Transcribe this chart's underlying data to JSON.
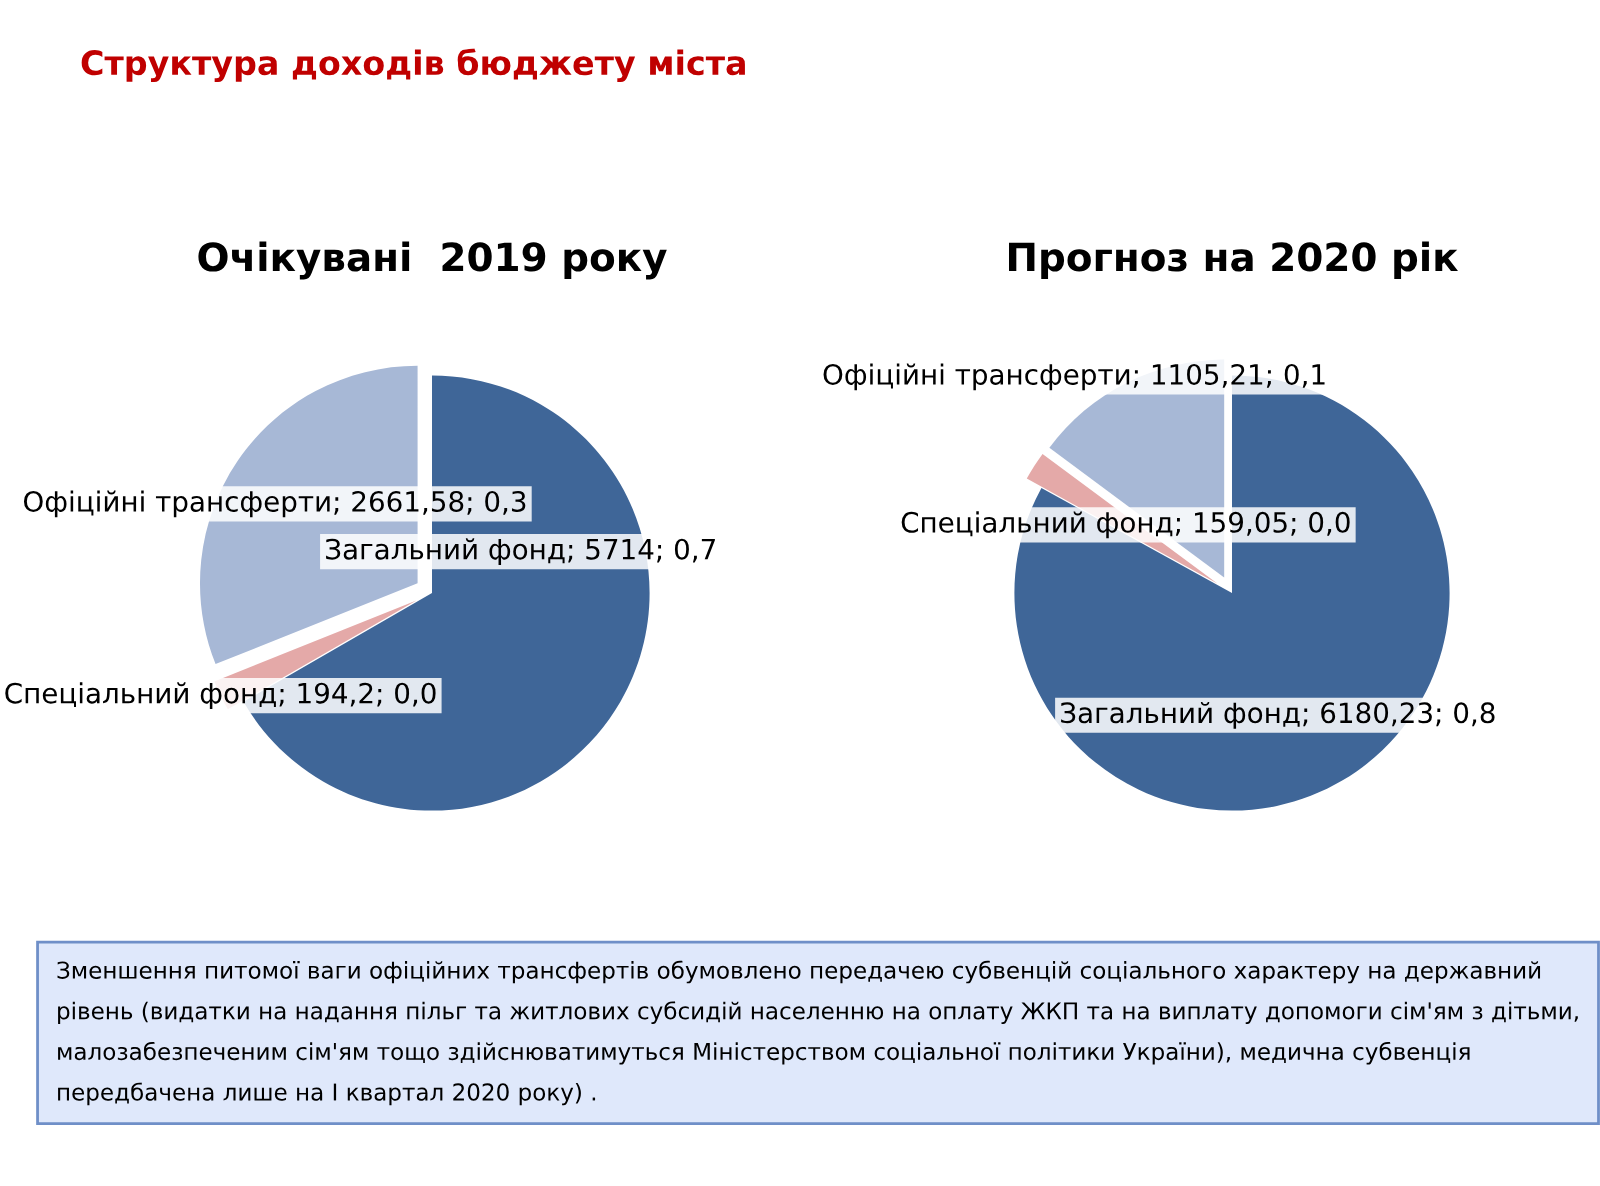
{
  "chart_data": [
    {
      "type": "pie",
      "title": "Очікувані  2019 року",
      "categories": [
        "Загальний фонд",
        "Спеціальний фонд",
        "Офіційні трансферти"
      ],
      "values": [
        5714,
        194.2,
        2661.58
      ],
      "value_labels": [
        "5714; 0,7",
        "194,2; 0,0",
        "2661,58; 0,3"
      ],
      "colors": [
        "#3f6698",
        "#e4a9a8",
        "#a7b8d6"
      ],
      "legend": false,
      "annotations": [
        "Структура доходів бюджету міста",
        "Зменшення питомої ваги офіційних трансфертів обумовлено передачею субвенцій соціального характеру на державний рівень (видатки на надання пільг та житлових субсидій населенню на оплату ЖКП та на виплату допомоги сім'ям з дітьми, малозабезпеченим сім'ям тощо здійснюватимуться Міністерством соціальної політики України), медична субвенція передбачена лише на І квартал 2020 року) ."
      ]
    },
    {
      "type": "pie",
      "title": "Прогноз на 2020 рік",
      "categories": [
        "Загальний фонд",
        "Спеціальний фонд",
        "Офіційні трансферти"
      ],
      "values": [
        6180.23,
        159.05,
        1105.21
      ],
      "value_labels": [
        "6180,23; 0,8",
        "159,05; 0,0",
        "1105,21; 0,1"
      ],
      "colors": [
        "#3f6698",
        "#e4a9a8",
        "#a7b8d6"
      ],
      "legend": false
    }
  ]
}
